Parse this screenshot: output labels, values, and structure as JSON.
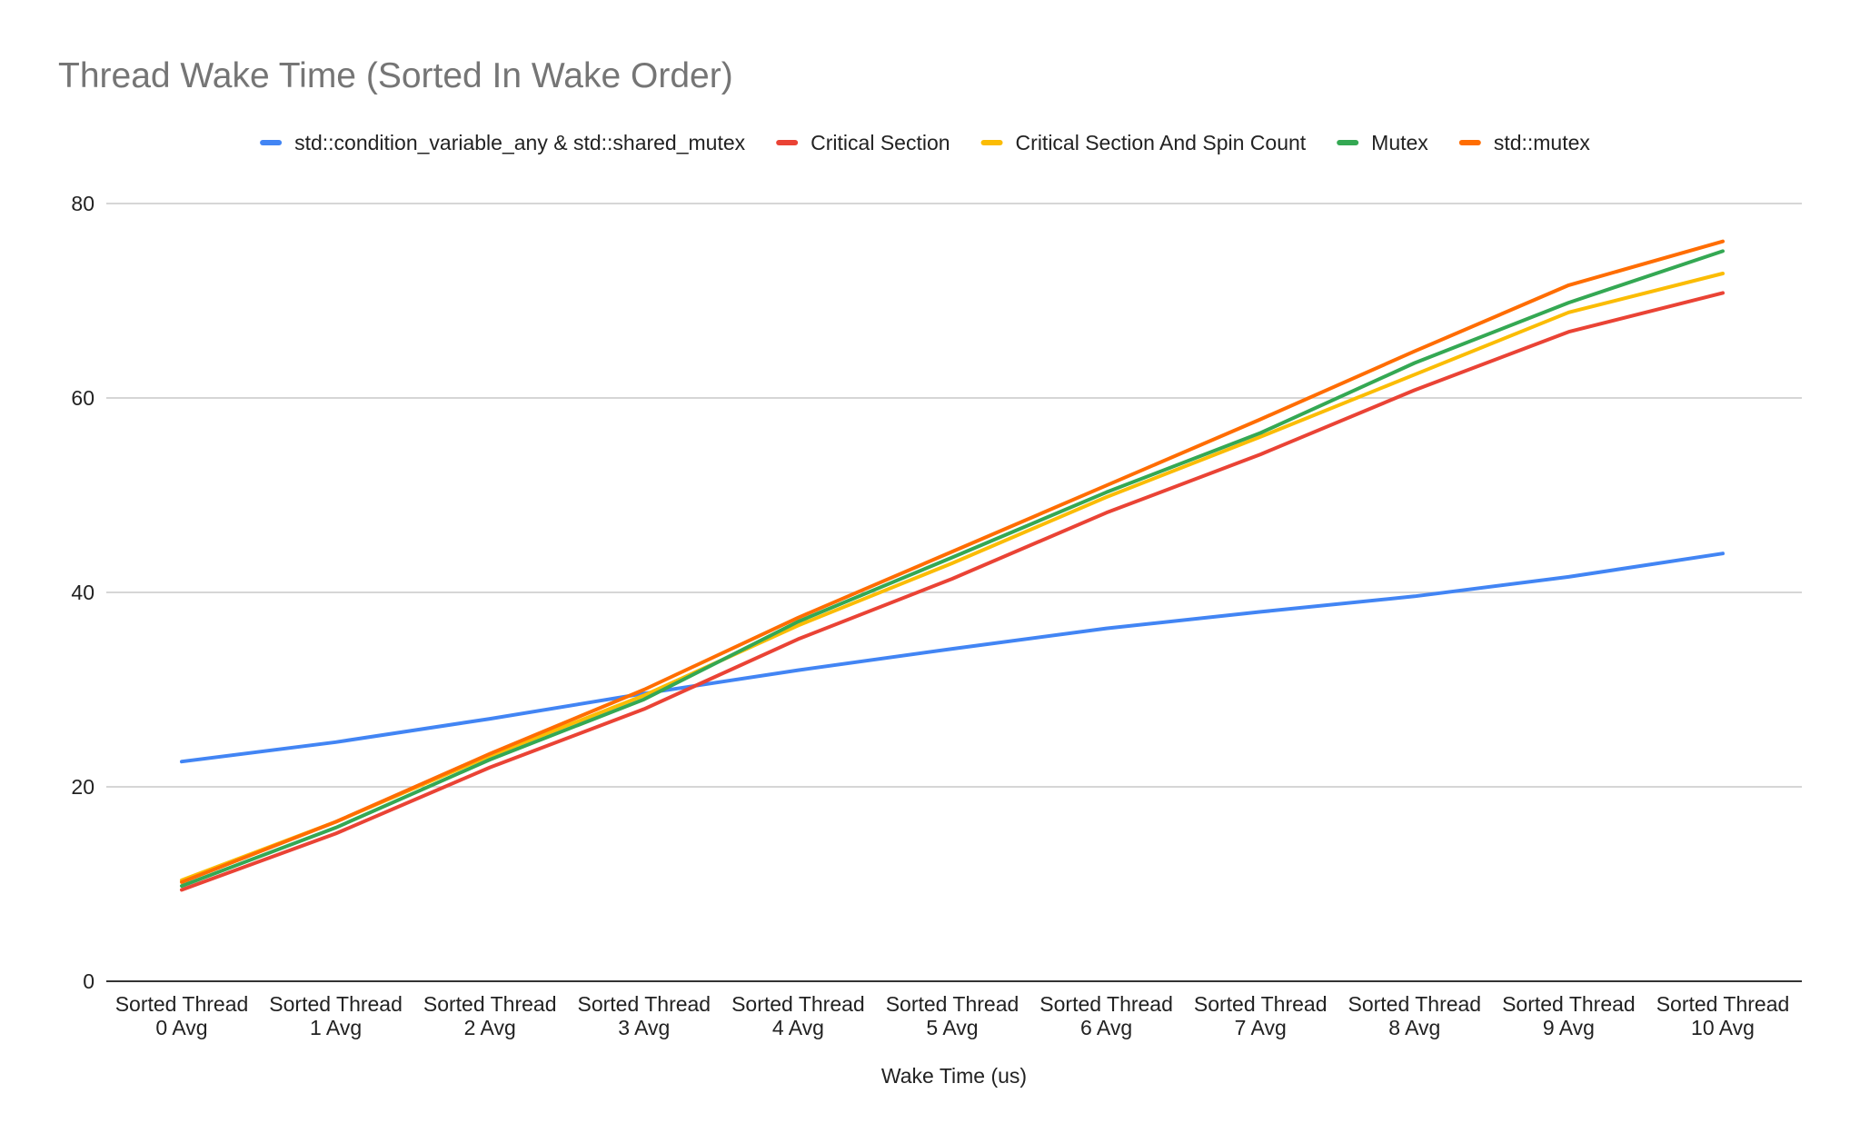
{
  "chart_data": {
    "type": "line",
    "title": "Thread Wake Time (Sorted In Wake Order)",
    "xlabel": "Wake Time (us)",
    "ylabel": "",
    "ylim": [
      0,
      80
    ],
    "yticks": [
      "0",
      "20",
      "40",
      "60",
      "80"
    ],
    "grid": true,
    "legend_position": "top",
    "categories": [
      [
        "Sorted Thread",
        "0 Avg"
      ],
      [
        "Sorted Thread",
        "1 Avg"
      ],
      [
        "Sorted Thread",
        "2 Avg"
      ],
      [
        "Sorted Thread",
        "3 Avg"
      ],
      [
        "Sorted Thread",
        "4 Avg"
      ],
      [
        "Sorted Thread",
        "5 Avg"
      ],
      [
        "Sorted Thread",
        "6 Avg"
      ],
      [
        "Sorted Thread",
        "7 Avg"
      ],
      [
        "Sorted Thread",
        "8 Avg"
      ],
      [
        "Sorted Thread",
        "9 Avg"
      ],
      [
        "Sorted Thread",
        "10 Avg"
      ]
    ],
    "series": [
      {
        "name": "std::condition_variable_any & std::shared_mutex",
        "color": "#4285f4",
        "values": [
          22.6,
          24.6,
          27.0,
          29.6,
          32.0,
          34.2,
          36.3,
          38.0,
          39.6,
          41.6,
          44.0
        ]
      },
      {
        "name": "Critical Section",
        "color": "#ea4335",
        "values": [
          9.4,
          15.2,
          22.0,
          28.0,
          35.2,
          41.4,
          48.2,
          54.2,
          60.8,
          66.8,
          70.8
        ]
      },
      {
        "name": "Critical Section And Spin Count",
        "color": "#fbbc04",
        "values": [
          10.4,
          16.4,
          23.2,
          29.4,
          36.6,
          43.0,
          49.8,
          56.0,
          62.4,
          68.8,
          72.8
        ]
      },
      {
        "name": "Mutex",
        "color": "#34a853",
        "values": [
          9.8,
          15.8,
          22.8,
          29.0,
          37.0,
          43.6,
          50.3,
          56.4,
          63.6,
          69.8,
          75.1
        ]
      },
      {
        "name": "std::mutex",
        "color": "#ff6d01",
        "values": [
          10.2,
          16.4,
          23.4,
          30.0,
          37.4,
          44.2,
          51.0,
          57.8,
          64.8,
          71.6,
          76.1
        ]
      }
    ]
  }
}
